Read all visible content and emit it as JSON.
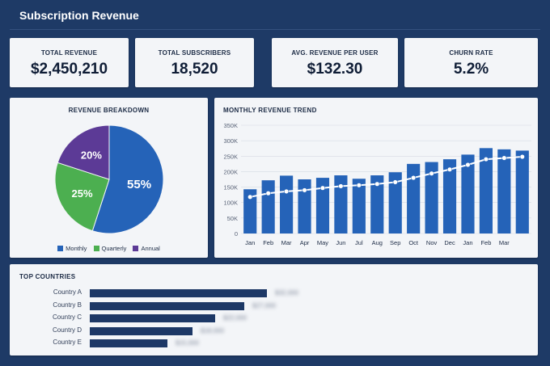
{
  "header": {
    "title": "Subscription Revenue"
  },
  "kpis": [
    {
      "label": "TOTAL REVENUE",
      "value": "$2,450,210"
    },
    {
      "label": "TOTAL SUBSCRIBERS",
      "value": "18,520"
    },
    {
      "label": "AVG. REVENUE PER USER",
      "value": "$132.30"
    },
    {
      "label": "CHURN RATE",
      "value": "5.2%"
    }
  ],
  "breakdown": {
    "title": "REVENUE BREAKDOWN",
    "legend": [
      "Monthly",
      "Quarterly",
      "Annual"
    ],
    "colors": {
      "monthly": "#2563b8",
      "quarterly": "#4caf50",
      "annual": "#5c3a96"
    }
  },
  "trend": {
    "title": "MONTHLY REVENUE TREND"
  },
  "countries": {
    "title": "TOP COUNTRIES",
    "rows": [
      {
        "name": "Country A",
        "value": "$32,000",
        "fraction": 1.0
      },
      {
        "name": "Country B",
        "value": "$27,000",
        "fraction": 0.87
      },
      {
        "name": "Country C",
        "value": "$22,000",
        "fraction": 0.71
      },
      {
        "name": "Country D",
        "value": "$18,000",
        "fraction": 0.58
      },
      {
        "name": "Country E",
        "value": "$15,000",
        "fraction": 0.44
      }
    ]
  },
  "chart_data": [
    {
      "type": "pie",
      "title": "REVENUE BREAKDOWN",
      "labels": [
        "Monthly",
        "Quarterly",
        "Annual"
      ],
      "values": [
        55,
        25,
        20
      ],
      "value_labels": [
        "55%",
        "25%",
        "20%"
      ],
      "colors": [
        "#2563b8",
        "#4caf50",
        "#5c3a96"
      ],
      "legend": "bottom"
    },
    {
      "type": "bar",
      "title": "MONTHLY REVENUE TREND",
      "categories": [
        "Jan",
        "Feb",
        "Mar",
        "Apr",
        "May",
        "Jun",
        "Jul",
        "Aug",
        "Sep",
        "Oct",
        "Nov",
        "Dec",
        "Jan",
        "Feb",
        "Mar",
        ""
      ],
      "series": [
        {
          "type": "bar",
          "values": [
            143000,
            172000,
            187000,
            175000,
            180000,
            188000,
            177000,
            188000,
            198000,
            225000,
            231000,
            240000,
            255000,
            276000,
            272000,
            268000
          ]
        },
        {
          "type": "line",
          "values": [
            118000,
            130000,
            136000,
            140000,
            147000,
            153000,
            156000,
            160000,
            166000,
            180000,
            194000,
            207000,
            222000,
            240000,
            244000,
            248000
          ]
        }
      ],
      "yticks": [
        "0",
        "50K",
        "100K",
        "150K",
        "200K",
        "250K",
        "300K",
        "350K"
      ],
      "ylim": [
        0,
        350000
      ],
      "grid": true,
      "colors": {
        "bar": "#2563b8",
        "line": "#ffffff"
      }
    }
  ]
}
